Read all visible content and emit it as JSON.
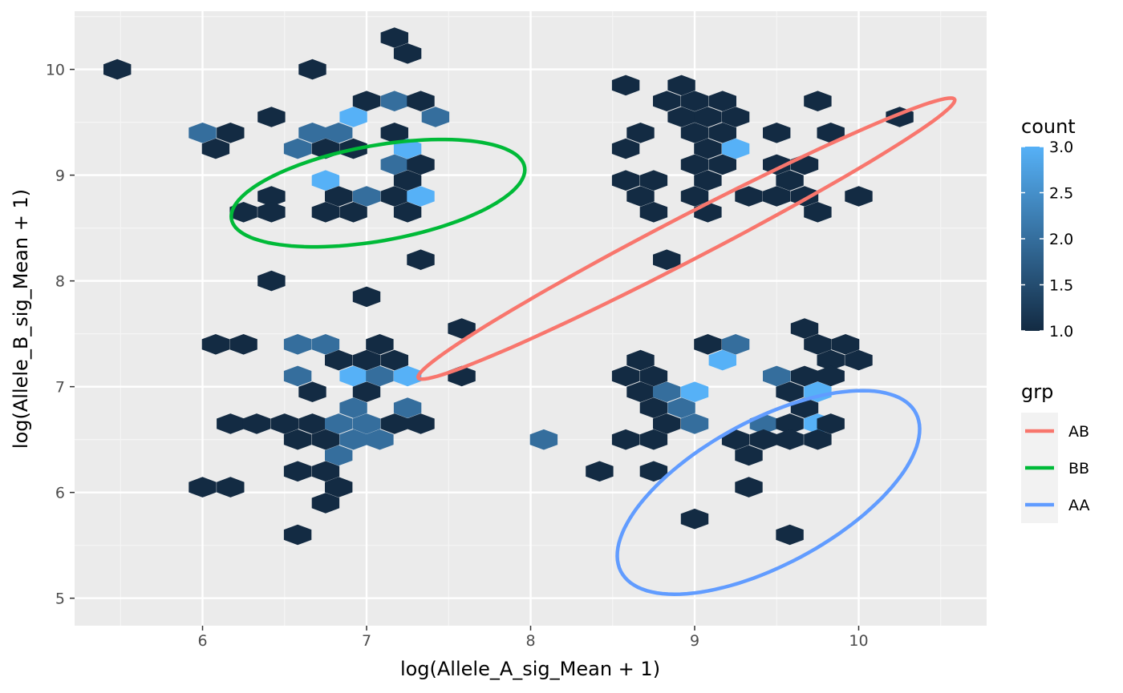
{
  "chart_data": {
    "type": "hexbin",
    "xlabel": "log(Allele_A_sig_Mean + 1)",
    "ylabel": "log(Allele_B_sig_Mean + 1)",
    "xlim": [
      5.22,
      10.78
    ],
    "ylim": [
      4.74,
      10.55
    ],
    "x_ticks": [
      6,
      7,
      8,
      9,
      10
    ],
    "y_ticks": [
      5,
      6,
      7,
      8,
      9,
      10
    ],
    "x_tick_labels": [
      "6",
      "7",
      "8",
      "9",
      "10"
    ],
    "y_tick_labels": [
      "5",
      "6",
      "7",
      "8",
      "9",
      "10"
    ],
    "grid": true,
    "panel_background": "#ebebeb",
    "fill_legend": {
      "title": "count",
      "min": 1.0,
      "max": 3.0,
      "low_color": "#132b43",
      "high_color": "#56b1f7",
      "ticks": [
        1.0,
        1.5,
        2.0,
        2.5,
        3.0
      ],
      "tick_labels": [
        "1.0",
        "1.5",
        "2.0",
        "2.5",
        "3.0"
      ]
    },
    "hexbins": [
      {
        "x": 5.48,
        "y": 10.0,
        "count": 1
      },
      {
        "x": 7.17,
        "y": 10.3,
        "count": 1
      },
      {
        "x": 7.25,
        "y": 10.15,
        "count": 1
      },
      {
        "x": 6.67,
        "y": 10.0,
        "count": 1
      },
      {
        "x": 6.42,
        "y": 9.55,
        "count": 1
      },
      {
        "x": 7.0,
        "y": 9.7,
        "count": 1
      },
      {
        "x": 7.17,
        "y": 9.7,
        "count": 2
      },
      {
        "x": 7.33,
        "y": 9.7,
        "count": 1
      },
      {
        "x": 6.92,
        "y": 9.55,
        "count": 3
      },
      {
        "x": 7.42,
        "y": 9.55,
        "count": 2
      },
      {
        "x": 6.0,
        "y": 9.4,
        "count": 2
      },
      {
        "x": 6.17,
        "y": 9.4,
        "count": 1
      },
      {
        "x": 6.67,
        "y": 9.4,
        "count": 2
      },
      {
        "x": 6.83,
        "y": 9.4,
        "count": 2
      },
      {
        "x": 7.17,
        "y": 9.4,
        "count": 1
      },
      {
        "x": 6.08,
        "y": 9.25,
        "count": 1
      },
      {
        "x": 6.58,
        "y": 9.25,
        "count": 2
      },
      {
        "x": 6.75,
        "y": 9.25,
        "count": 1
      },
      {
        "x": 6.92,
        "y": 9.25,
        "count": 1
      },
      {
        "x": 7.25,
        "y": 9.25,
        "count": 3
      },
      {
        "x": 7.17,
        "y": 9.1,
        "count": 2
      },
      {
        "x": 7.33,
        "y": 9.1,
        "count": 1
      },
      {
        "x": 6.75,
        "y": 8.95,
        "count": 3
      },
      {
        "x": 7.25,
        "y": 8.95,
        "count": 1
      },
      {
        "x": 6.42,
        "y": 8.8,
        "count": 1
      },
      {
        "x": 6.83,
        "y": 8.8,
        "count": 1
      },
      {
        "x": 7.0,
        "y": 8.8,
        "count": 2
      },
      {
        "x": 7.17,
        "y": 8.8,
        "count": 1
      },
      {
        "x": 7.33,
        "y": 8.8,
        "count": 3
      },
      {
        "x": 6.25,
        "y": 8.65,
        "count": 1
      },
      {
        "x": 6.42,
        "y": 8.65,
        "count": 1
      },
      {
        "x": 6.75,
        "y": 8.65,
        "count": 1
      },
      {
        "x": 6.92,
        "y": 8.65,
        "count": 1
      },
      {
        "x": 7.25,
        "y": 8.65,
        "count": 1
      },
      {
        "x": 7.33,
        "y": 8.2,
        "count": 1
      },
      {
        "x": 6.42,
        "y": 8.0,
        "count": 1
      },
      {
        "x": 7.0,
        "y": 7.85,
        "count": 1
      },
      {
        "x": 6.08,
        "y": 7.4,
        "count": 1
      },
      {
        "x": 6.25,
        "y": 7.4,
        "count": 1
      },
      {
        "x": 6.58,
        "y": 7.4,
        "count": 2
      },
      {
        "x": 6.75,
        "y": 7.4,
        "count": 2
      },
      {
        "x": 7.08,
        "y": 7.4,
        "count": 1
      },
      {
        "x": 6.83,
        "y": 7.25,
        "count": 1
      },
      {
        "x": 7.0,
        "y": 7.25,
        "count": 1
      },
      {
        "x": 7.17,
        "y": 7.25,
        "count": 1
      },
      {
        "x": 6.58,
        "y": 7.1,
        "count": 2
      },
      {
        "x": 6.92,
        "y": 7.1,
        "count": 3
      },
      {
        "x": 7.08,
        "y": 7.1,
        "count": 2
      },
      {
        "x": 7.25,
        "y": 7.1,
        "count": 3
      },
      {
        "x": 6.67,
        "y": 6.95,
        "count": 1
      },
      {
        "x": 7.0,
        "y": 6.95,
        "count": 1
      },
      {
        "x": 6.92,
        "y": 6.8,
        "count": 2
      },
      {
        "x": 7.25,
        "y": 6.8,
        "count": 2
      },
      {
        "x": 6.17,
        "y": 6.65,
        "count": 1
      },
      {
        "x": 6.33,
        "y": 6.65,
        "count": 1
      },
      {
        "x": 6.5,
        "y": 6.65,
        "count": 1
      },
      {
        "x": 6.67,
        "y": 6.65,
        "count": 1
      },
      {
        "x": 6.83,
        "y": 6.65,
        "count": 2
      },
      {
        "x": 7.0,
        "y": 6.65,
        "count": 2
      },
      {
        "x": 7.17,
        "y": 6.65,
        "count": 1
      },
      {
        "x": 7.33,
        "y": 6.65,
        "count": 1
      },
      {
        "x": 6.58,
        "y": 6.5,
        "count": 1
      },
      {
        "x": 6.75,
        "y": 6.5,
        "count": 1
      },
      {
        "x": 6.92,
        "y": 6.5,
        "count": 2
      },
      {
        "x": 7.08,
        "y": 6.5,
        "count": 2
      },
      {
        "x": 6.83,
        "y": 6.35,
        "count": 2
      },
      {
        "x": 6.58,
        "y": 6.2,
        "count": 1
      },
      {
        "x": 6.75,
        "y": 6.2,
        "count": 1
      },
      {
        "x": 6.0,
        "y": 6.05,
        "count": 1
      },
      {
        "x": 6.17,
        "y": 6.05,
        "count": 1
      },
      {
        "x": 6.83,
        "y": 6.05,
        "count": 1
      },
      {
        "x": 6.75,
        "y": 5.9,
        "count": 1
      },
      {
        "x": 6.58,
        "y": 5.6,
        "count": 1
      },
      {
        "x": 7.58,
        "y": 7.55,
        "count": 1
      },
      {
        "x": 7.58,
        "y": 7.1,
        "count": 1
      },
      {
        "x": 8.92,
        "y": 9.85,
        "count": 1
      },
      {
        "x": 8.58,
        "y": 9.85,
        "count": 1
      },
      {
        "x": 8.83,
        "y": 9.7,
        "count": 1
      },
      {
        "x": 9.0,
        "y": 9.7,
        "count": 1
      },
      {
        "x": 9.17,
        "y": 9.7,
        "count": 1
      },
      {
        "x": 9.75,
        "y": 9.7,
        "count": 1
      },
      {
        "x": 8.92,
        "y": 9.55,
        "count": 1
      },
      {
        "x": 9.08,
        "y": 9.55,
        "count": 1
      },
      {
        "x": 9.25,
        "y": 9.55,
        "count": 1
      },
      {
        "x": 10.25,
        "y": 9.55,
        "count": 1
      },
      {
        "x": 8.67,
        "y": 9.4,
        "count": 1
      },
      {
        "x": 9.0,
        "y": 9.4,
        "count": 1
      },
      {
        "x": 9.17,
        "y": 9.4,
        "count": 1
      },
      {
        "x": 9.5,
        "y": 9.4,
        "count": 1
      },
      {
        "x": 9.83,
        "y": 9.4,
        "count": 1
      },
      {
        "x": 8.58,
        "y": 9.25,
        "count": 1
      },
      {
        "x": 9.08,
        "y": 9.25,
        "count": 1
      },
      {
        "x": 9.25,
        "y": 9.25,
        "count": 3
      },
      {
        "x": 9.0,
        "y": 9.1,
        "count": 1
      },
      {
        "x": 9.17,
        "y": 9.1,
        "count": 1
      },
      {
        "x": 9.5,
        "y": 9.1,
        "count": 1
      },
      {
        "x": 9.67,
        "y": 9.1,
        "count": 1
      },
      {
        "x": 8.58,
        "y": 8.95,
        "count": 1
      },
      {
        "x": 8.75,
        "y": 8.95,
        "count": 1
      },
      {
        "x": 9.08,
        "y": 8.95,
        "count": 1
      },
      {
        "x": 9.58,
        "y": 8.95,
        "count": 1
      },
      {
        "x": 8.67,
        "y": 8.8,
        "count": 1
      },
      {
        "x": 9.0,
        "y": 8.8,
        "count": 1
      },
      {
        "x": 9.33,
        "y": 8.8,
        "count": 1
      },
      {
        "x": 9.5,
        "y": 8.8,
        "count": 1
      },
      {
        "x": 9.67,
        "y": 8.8,
        "count": 1
      },
      {
        "x": 10.0,
        "y": 8.8,
        "count": 1
      },
      {
        "x": 8.75,
        "y": 8.65,
        "count": 1
      },
      {
        "x": 9.08,
        "y": 8.65,
        "count": 1
      },
      {
        "x": 9.75,
        "y": 8.65,
        "count": 1
      },
      {
        "x": 8.83,
        "y": 8.2,
        "count": 1
      },
      {
        "x": 9.67,
        "y": 7.55,
        "count": 1
      },
      {
        "x": 9.08,
        "y": 7.4,
        "count": 1
      },
      {
        "x": 9.25,
        "y": 7.4,
        "count": 2
      },
      {
        "x": 9.75,
        "y": 7.4,
        "count": 1
      },
      {
        "x": 9.92,
        "y": 7.4,
        "count": 1
      },
      {
        "x": 8.67,
        "y": 7.25,
        "count": 1
      },
      {
        "x": 9.17,
        "y": 7.25,
        "count": 3
      },
      {
        "x": 9.83,
        "y": 7.25,
        "count": 1
      },
      {
        "x": 10.0,
        "y": 7.25,
        "count": 1
      },
      {
        "x": 8.58,
        "y": 7.1,
        "count": 1
      },
      {
        "x": 8.75,
        "y": 7.1,
        "count": 1
      },
      {
        "x": 9.5,
        "y": 7.1,
        "count": 2
      },
      {
        "x": 9.67,
        "y": 7.1,
        "count": 1
      },
      {
        "x": 9.83,
        "y": 7.1,
        "count": 1
      },
      {
        "x": 8.67,
        "y": 6.95,
        "count": 1
      },
      {
        "x": 8.83,
        "y": 6.95,
        "count": 2
      },
      {
        "x": 9.0,
        "y": 6.95,
        "count": 3
      },
      {
        "x": 9.58,
        "y": 6.95,
        "count": 1
      },
      {
        "x": 9.75,
        "y": 6.95,
        "count": 3
      },
      {
        "x": 8.75,
        "y": 6.8,
        "count": 1
      },
      {
        "x": 8.92,
        "y": 6.8,
        "count": 2
      },
      {
        "x": 9.67,
        "y": 6.8,
        "count": 1
      },
      {
        "x": 8.83,
        "y": 6.65,
        "count": 1
      },
      {
        "x": 9.0,
        "y": 6.65,
        "count": 2
      },
      {
        "x": 9.42,
        "y": 6.65,
        "count": 2
      },
      {
        "x": 9.58,
        "y": 6.65,
        "count": 1
      },
      {
        "x": 9.75,
        "y": 6.65,
        "count": 3
      },
      {
        "x": 9.83,
        "y": 6.65,
        "count": 1
      },
      {
        "x": 8.58,
        "y": 6.5,
        "count": 1
      },
      {
        "x": 8.75,
        "y": 6.5,
        "count": 1
      },
      {
        "x": 9.25,
        "y": 6.5,
        "count": 1
      },
      {
        "x": 9.42,
        "y": 6.5,
        "count": 1
      },
      {
        "x": 9.58,
        "y": 6.5,
        "count": 1
      },
      {
        "x": 9.75,
        "y": 6.5,
        "count": 1
      },
      {
        "x": 8.08,
        "y": 6.5,
        "count": 2
      },
      {
        "x": 9.33,
        "y": 6.35,
        "count": 1
      },
      {
        "x": 8.42,
        "y": 6.2,
        "count": 1
      },
      {
        "x": 8.75,
        "y": 6.2,
        "count": 1
      },
      {
        "x": 9.33,
        "y": 6.05,
        "count": 1
      },
      {
        "x": 9.0,
        "y": 5.75,
        "count": 1
      },
      {
        "x": 9.58,
        "y": 5.6,
        "count": 1
      }
    ],
    "series": [
      {
        "name": "AB",
        "color": "#f8766d",
        "type": "ellipse",
        "center": [
          8.95,
          8.4
        ],
        "semi_major": 2.1,
        "semi_minor": 0.18,
        "angle_deg": 39
      },
      {
        "name": "BB",
        "color": "#00ba38",
        "type": "ellipse",
        "center": [
          7.07,
          8.83
        ],
        "semi_major": 0.93,
        "semi_minor": 0.44,
        "angle_deg": 18
      },
      {
        "name": "AA",
        "color": "#619cff",
        "type": "ellipse",
        "center": [
          9.45,
          6.0
        ],
        "semi_major": 1.2,
        "semi_minor": 0.58,
        "angle_deg": 47
      }
    ],
    "color_legend": {
      "title": "grp",
      "items": [
        "AB",
        "BB",
        "AA"
      ]
    }
  }
}
